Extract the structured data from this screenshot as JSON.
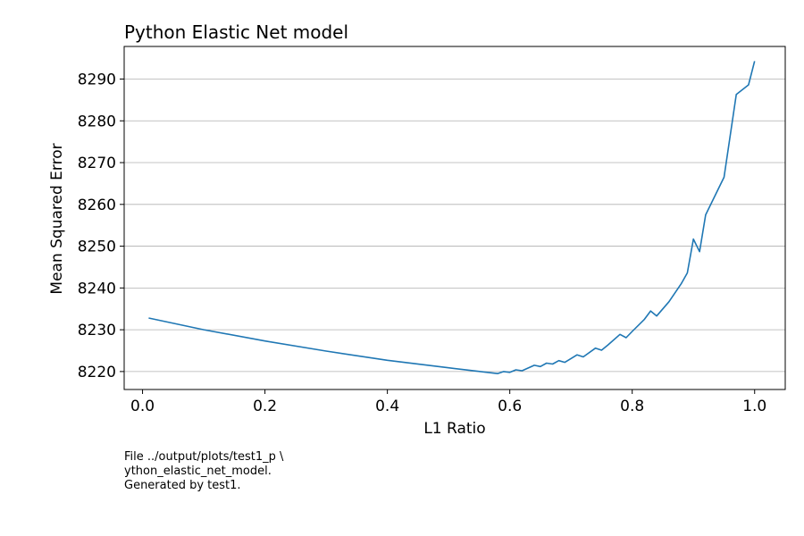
{
  "chart_data": {
    "type": "line",
    "title": "Python Elastic Net model",
    "xlabel": "L1 Ratio",
    "ylabel": "Mean Squared Error",
    "xlim": [
      -0.03,
      1.05
    ],
    "ylim": [
      8215.7,
      8297.8
    ],
    "xticks": [
      0.0,
      0.2,
      0.4,
      0.6,
      0.8,
      1.0
    ],
    "xtick_labels": [
      "0.0",
      "0.2",
      "0.4",
      "0.6",
      "0.8",
      "1.0"
    ],
    "yticks": [
      8220,
      8230,
      8240,
      8250,
      8260,
      8270,
      8280,
      8290
    ],
    "ytick_labels": [
      "8220",
      "8230",
      "8240",
      "8250",
      "8260",
      "8270",
      "8280",
      "8290"
    ],
    "grid": "y-major",
    "series": [
      {
        "color": "#1f77b4",
        "x": [
          0.01,
          0.1,
          0.2,
          0.3,
          0.4,
          0.5,
          0.58,
          0.59,
          0.6,
          0.61,
          0.62,
          0.64,
          0.65,
          0.66,
          0.67,
          0.68,
          0.69,
          0.71,
          0.72,
          0.74,
          0.75,
          0.76,
          0.78,
          0.79,
          0.8,
          0.82,
          0.83,
          0.84,
          0.86,
          0.88,
          0.89,
          0.9,
          0.91,
          0.92,
          0.95,
          0.97,
          0.99,
          1.0
        ],
        "y": [
          8232.8,
          8230.0,
          8227.3,
          8224.9,
          8222.7,
          8220.9,
          8219.5,
          8220.0,
          8219.8,
          8220.4,
          8220.2,
          8221.5,
          8221.2,
          8222.0,
          8221.8,
          8222.6,
          8222.2,
          8224.0,
          8223.5,
          8225.6,
          8225.1,
          8226.3,
          8228.9,
          8228.1,
          8229.6,
          8232.5,
          8234.5,
          8233.3,
          8236.7,
          8241.0,
          8243.6,
          8251.7,
          8248.7,
          8257.5,
          8266.5,
          8286.3,
          8288.6,
          8294.3
        ]
      }
    ]
  },
  "caption": {
    "line1": "File ../output/plots/test1_p \\",
    "line2": "ython_elastic_net_model.",
    "line3": "Generated by test1."
  }
}
